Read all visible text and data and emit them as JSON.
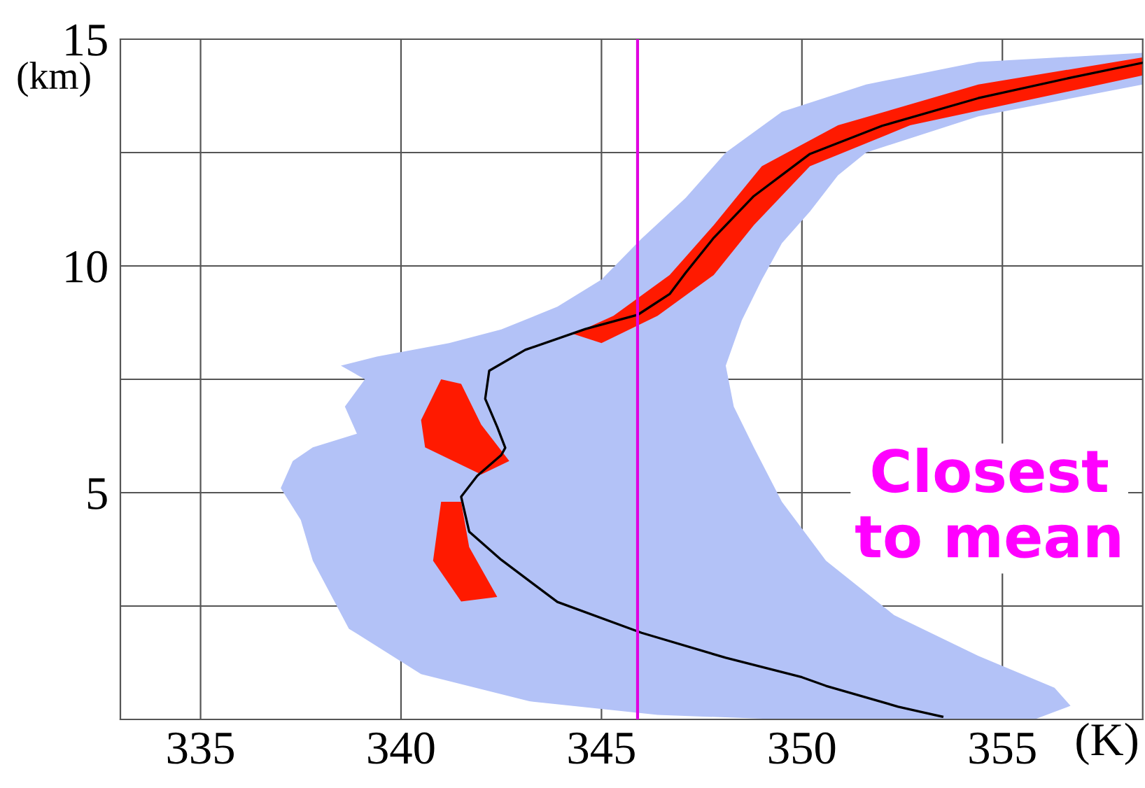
{
  "chart_data": {
    "type": "line",
    "xlabel": "(K)",
    "ylabel": "(km)",
    "xlim": [
      333,
      358.5
    ],
    "ylim": [
      0,
      15
    ],
    "xticks": [
      335,
      340,
      345,
      350,
      355
    ],
    "yticks": [
      {
        "value": 2.5,
        "label": null
      },
      5,
      {
        "value": 7.5,
        "label": null
      },
      10,
      {
        "value": 12.5,
        "label": null
      },
      15
    ],
    "grid": true,
    "legend": false,
    "series": [
      {
        "type": "area",
        "color": "#b3c2f7",
        "x": [
          358.5,
          358.5,
          354.4,
          351.6,
          350.9,
          350.2,
          349.5,
          349.0,
          348.5,
          348.1,
          348.3,
          348.8,
          349.5,
          350.6,
          352.3,
          354.4,
          356.3,
          356.7,
          355.8,
          349.5,
          346.4,
          343.2,
          340.5,
          338.7,
          337.8,
          337.5,
          337.0,
          337.3,
          337.8,
          338.9,
          338.6,
          339.1,
          338.5,
          339.4,
          341.2,
          342.5,
          343.9,
          345.0,
          346.0,
          347.1,
          348.1,
          349.5,
          351.6,
          354.4
        ],
        "values": [
          14.7,
          14.0,
          13.3,
          12.5,
          12.0,
          11.2,
          10.5,
          9.7,
          8.8,
          7.8,
          6.9,
          6.0,
          4.8,
          3.5,
          2.3,
          1.4,
          0.7,
          0.3,
          0,
          0,
          0.1,
          0.4,
          1.0,
          2.0,
          3.5,
          4.4,
          5.1,
          5.7,
          6.0,
          6.3,
          6.9,
          7.5,
          7.8,
          8.0,
          8.3,
          8.6,
          9.1,
          9.7,
          10.6,
          11.5,
          12.5,
          13.4,
          14.0,
          14.5
        ]
      },
      {
        "type": "area",
        "color": "#ff1a00",
        "x": [
          358.5,
          354.4,
          350.9,
          349.0,
          347.8,
          346.7,
          345.3,
          344.3,
          345.0,
          346.4,
          347.8,
          348.8,
          350.2,
          352.7,
          358.5
        ],
        "values": [
          14.6,
          14.0,
          13.1,
          12.2,
          10.9,
          9.8,
          8.9,
          8.5,
          8.3,
          8.9,
          9.8,
          10.9,
          12.2,
          13.1,
          14.2
        ]
      },
      {
        "type": "area",
        "color": "#ff1a00",
        "x": [
          341.0,
          340.5,
          340.6,
          342.0,
          342.7,
          342.0,
          341.5
        ],
        "values": [
          7.5,
          6.6,
          6.0,
          5.4,
          5.7,
          6.5,
          7.4
        ]
      },
      {
        "type": "area",
        "color": "#ff1a00",
        "x": [
          341.0,
          340.8,
          341.5,
          342.4,
          341.7,
          341.5
        ],
        "values": [
          4.8,
          3.5,
          2.6,
          2.7,
          3.8,
          4.8
        ]
      },
      {
        "color": "#000000",
        "x": [
          353.5,
          352.4,
          350.6,
          350.0,
          348.1,
          346.0,
          343.9,
          342.5,
          341.7,
          341.5,
          341.9,
          342.5,
          342.6,
          342.4,
          342.1,
          342.2,
          343.1,
          344.6,
          345.9,
          346.7,
          347.1,
          347.8,
          348.8,
          350.2,
          352.0,
          354.4,
          356.8,
          358.5
        ],
        "values": [
          0.06,
          0.28,
          0.74,
          0.93,
          1.36,
          1.91,
          2.59,
          3.52,
          4.14,
          4.91,
          5.37,
          5.83,
          5.99,
          6.45,
          7.07,
          7.69,
          8.15,
          8.61,
          8.92,
          9.38,
          9.85,
          10.62,
          11.54,
          12.47,
          13.09,
          13.7,
          14.17,
          14.48
        ]
      }
    ],
    "ref_lines": [
      {
        "axis": "x",
        "value": 345.9,
        "color": "#e000e0"
      }
    ],
    "annotations": [
      "Closest to mean"
    ]
  }
}
